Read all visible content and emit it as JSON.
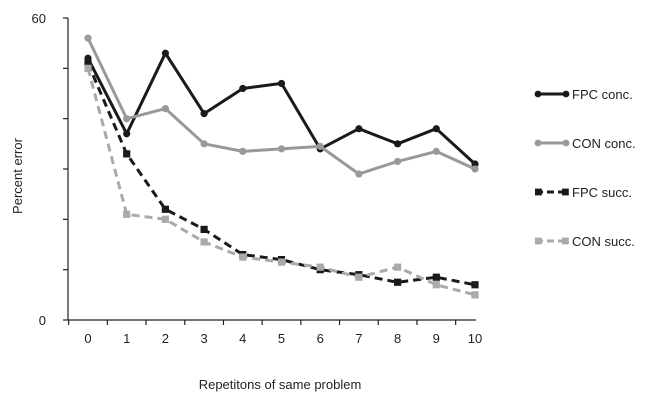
{
  "chart_data": {
    "type": "line",
    "title": "",
    "xlabel": "Repetitons of same problem",
    "ylabel": "Percent error",
    "x": [
      0,
      1,
      2,
      3,
      4,
      5,
      6,
      7,
      8,
      9,
      10
    ],
    "xlim": [
      0,
      10
    ],
    "ylim": [
      0,
      60
    ],
    "y_tick_labels": [
      "0",
      "60"
    ],
    "grid": false,
    "legend_position": "right",
    "series": [
      {
        "name": "FPC conc.",
        "values": [
          52,
          37,
          53,
          41,
          46,
          47,
          34,
          38,
          35,
          38,
          31
        ],
        "color": "#1a1a1a",
        "dash": "solid",
        "marker": "circle"
      },
      {
        "name": "CON conc.",
        "values": [
          56,
          40,
          42,
          35,
          33.5,
          34,
          34.5,
          29,
          31.5,
          33.5,
          30
        ],
        "color": "#999999",
        "dash": "solid",
        "marker": "circle"
      },
      {
        "name": "FPC succ.",
        "values": [
          51,
          33,
          22,
          18,
          13,
          12,
          10,
          9,
          7.5,
          8.5,
          7
        ],
        "color": "#1a1a1a",
        "dash": "dashed",
        "marker": "square"
      },
      {
        "name": "CON succ.",
        "values": [
          50,
          21,
          20,
          15.5,
          12.5,
          11.5,
          10.5,
          8.5,
          10.5,
          7,
          5
        ],
        "color": "#aaaaaa",
        "dash": "dashed",
        "marker": "square"
      }
    ]
  }
}
